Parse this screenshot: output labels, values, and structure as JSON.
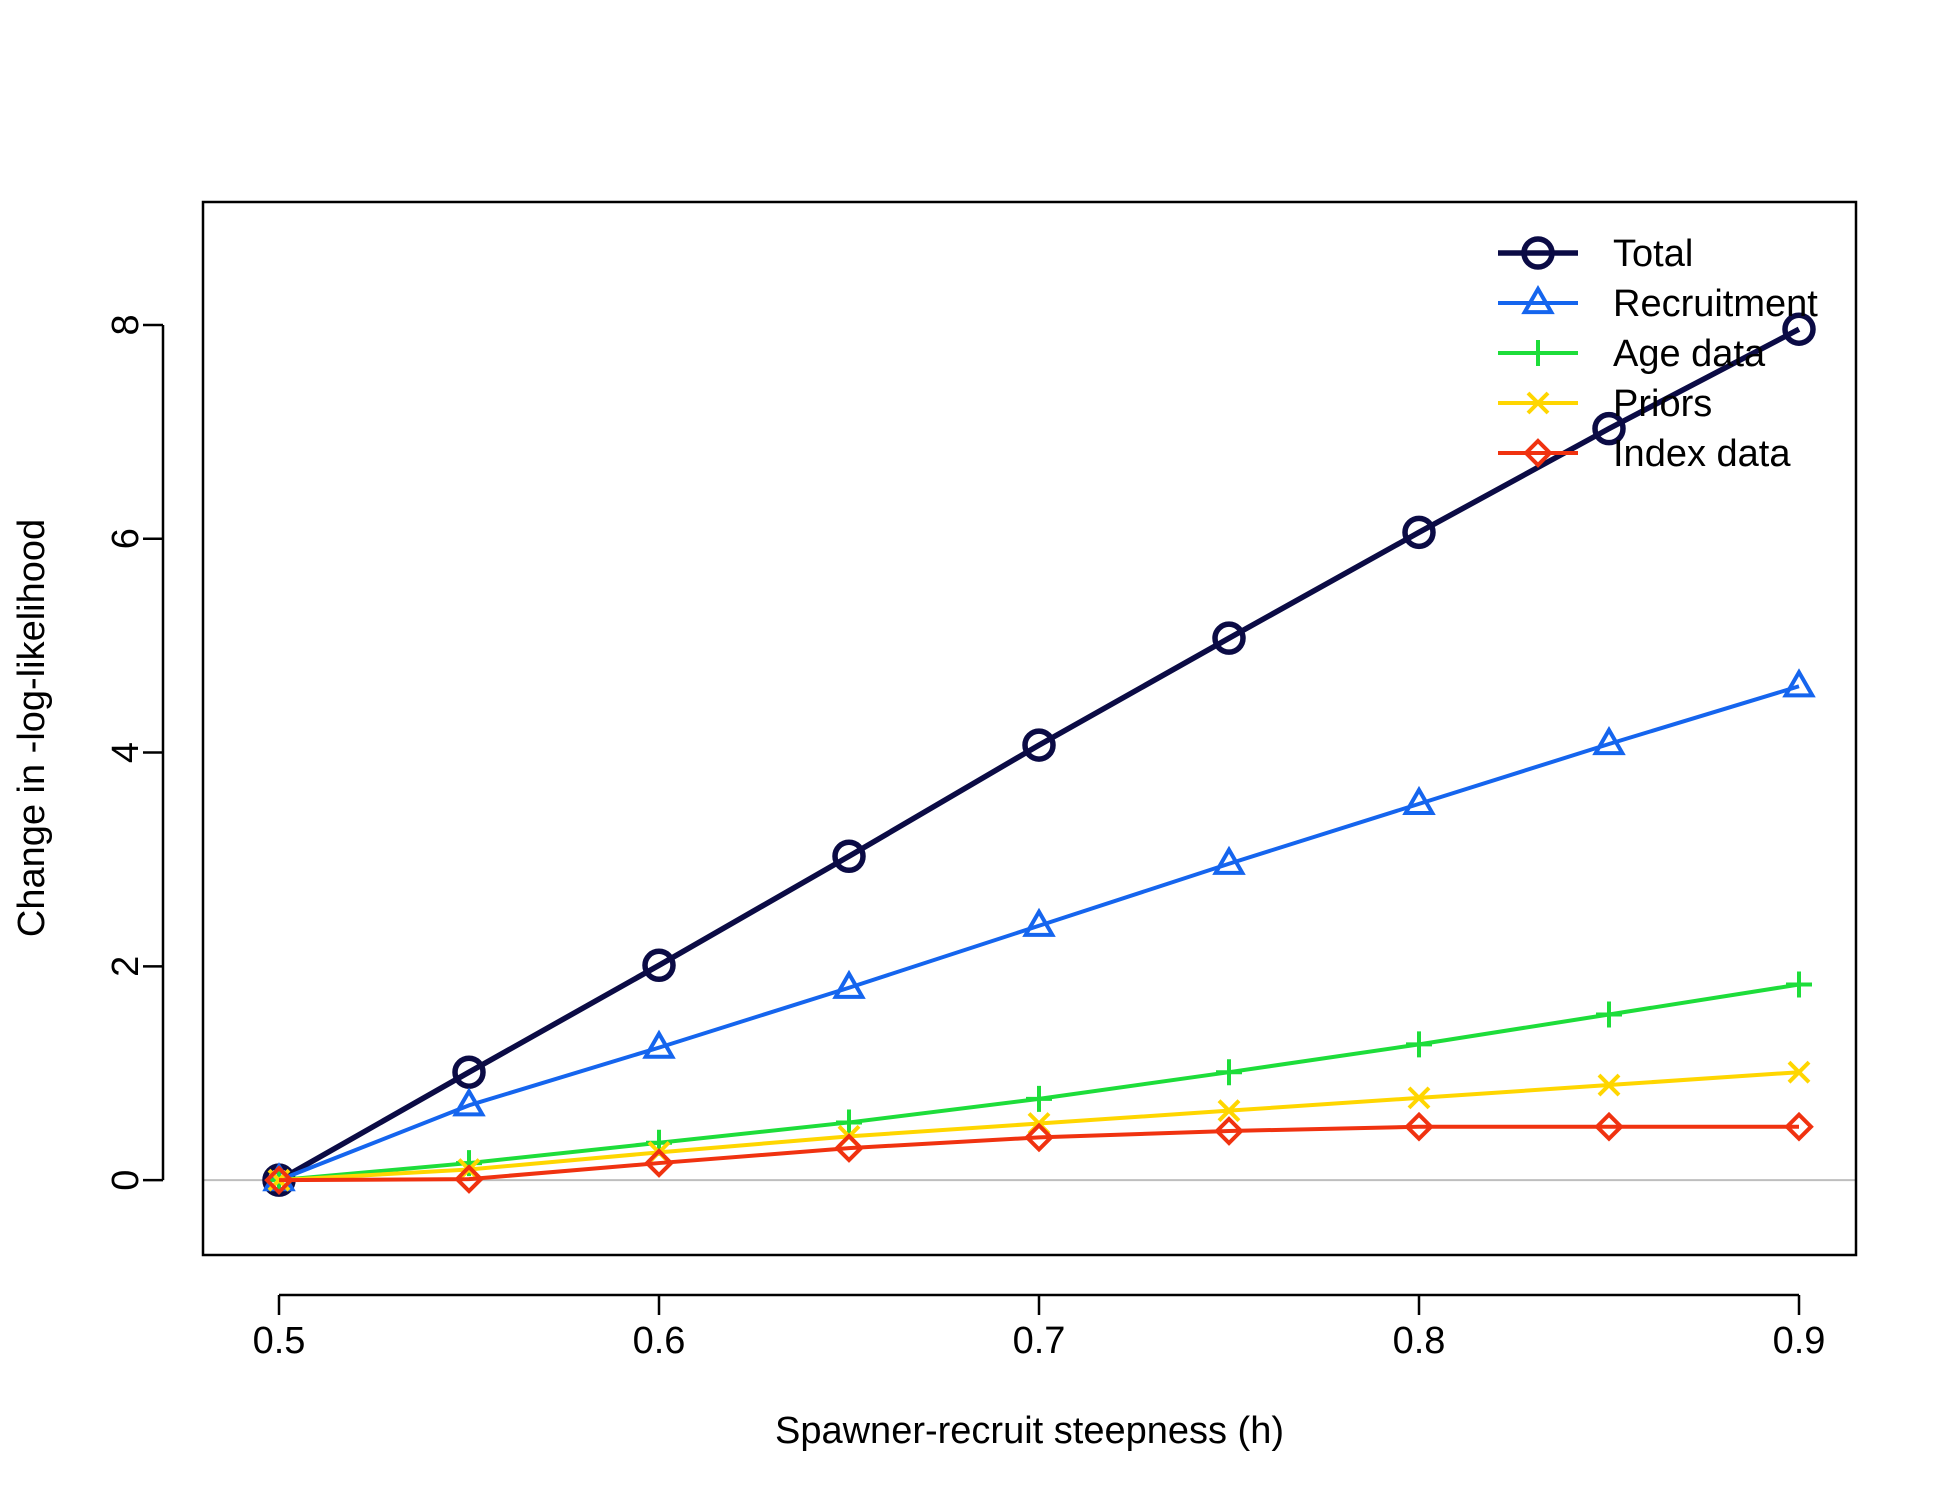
{
  "chart_data": {
    "type": "line",
    "title": "",
    "xlabel": "Spawner-recruit steepness (h)",
    "ylabel": "Change in -log-likelihood",
    "xlim": [
      0.48,
      0.915
    ],
    "ylim": [
      -0.7,
      9.15
    ],
    "x_ticks": [
      0.5,
      0.6,
      0.7,
      0.8,
      0.9
    ],
    "x_tick_labels": [
      "0.5",
      "0.6",
      "0.7",
      "0.8",
      "0.9"
    ],
    "y_ticks": [
      0,
      2,
      4,
      6,
      8
    ],
    "y_tick_labels": [
      "0",
      "2",
      "4",
      "6",
      "8"
    ],
    "reference_line": {
      "y": 0,
      "color": "#bebebe"
    },
    "legend_position": "top-right",
    "x": [
      0.5,
      0.55,
      0.6,
      0.65,
      0.7,
      0.75,
      0.8,
      0.85,
      0.9
    ],
    "series": [
      {
        "name": "Total",
        "color": "#0b0b45",
        "marker": "circle",
        "values": [
          0.0,
          1.01,
          2.01,
          3.03,
          4.07,
          5.07,
          6.06,
          7.03,
          7.96
        ]
      },
      {
        "name": "Recruitment",
        "color": "#1565ee",
        "marker": "triangle",
        "values": [
          0.0,
          0.7,
          1.24,
          1.8,
          2.38,
          2.96,
          3.52,
          4.08,
          4.62
        ]
      },
      {
        "name": "Age data",
        "color": "#1ddd3a",
        "marker": "plus",
        "values": [
          0.0,
          0.16,
          0.35,
          0.54,
          0.76,
          1.01,
          1.27,
          1.55,
          1.83
        ]
      },
      {
        "name": "Priors",
        "color": "#ffd600",
        "marker": "cross",
        "values": [
          0.0,
          0.1,
          0.26,
          0.41,
          0.53,
          0.65,
          0.77,
          0.89,
          1.01
        ]
      },
      {
        "name": "Index data",
        "color": "#f03210",
        "marker": "diamond",
        "values": [
          0.0,
          0.01,
          0.16,
          0.3,
          0.4,
          0.46,
          0.5,
          0.5,
          0.5
        ]
      }
    ]
  }
}
